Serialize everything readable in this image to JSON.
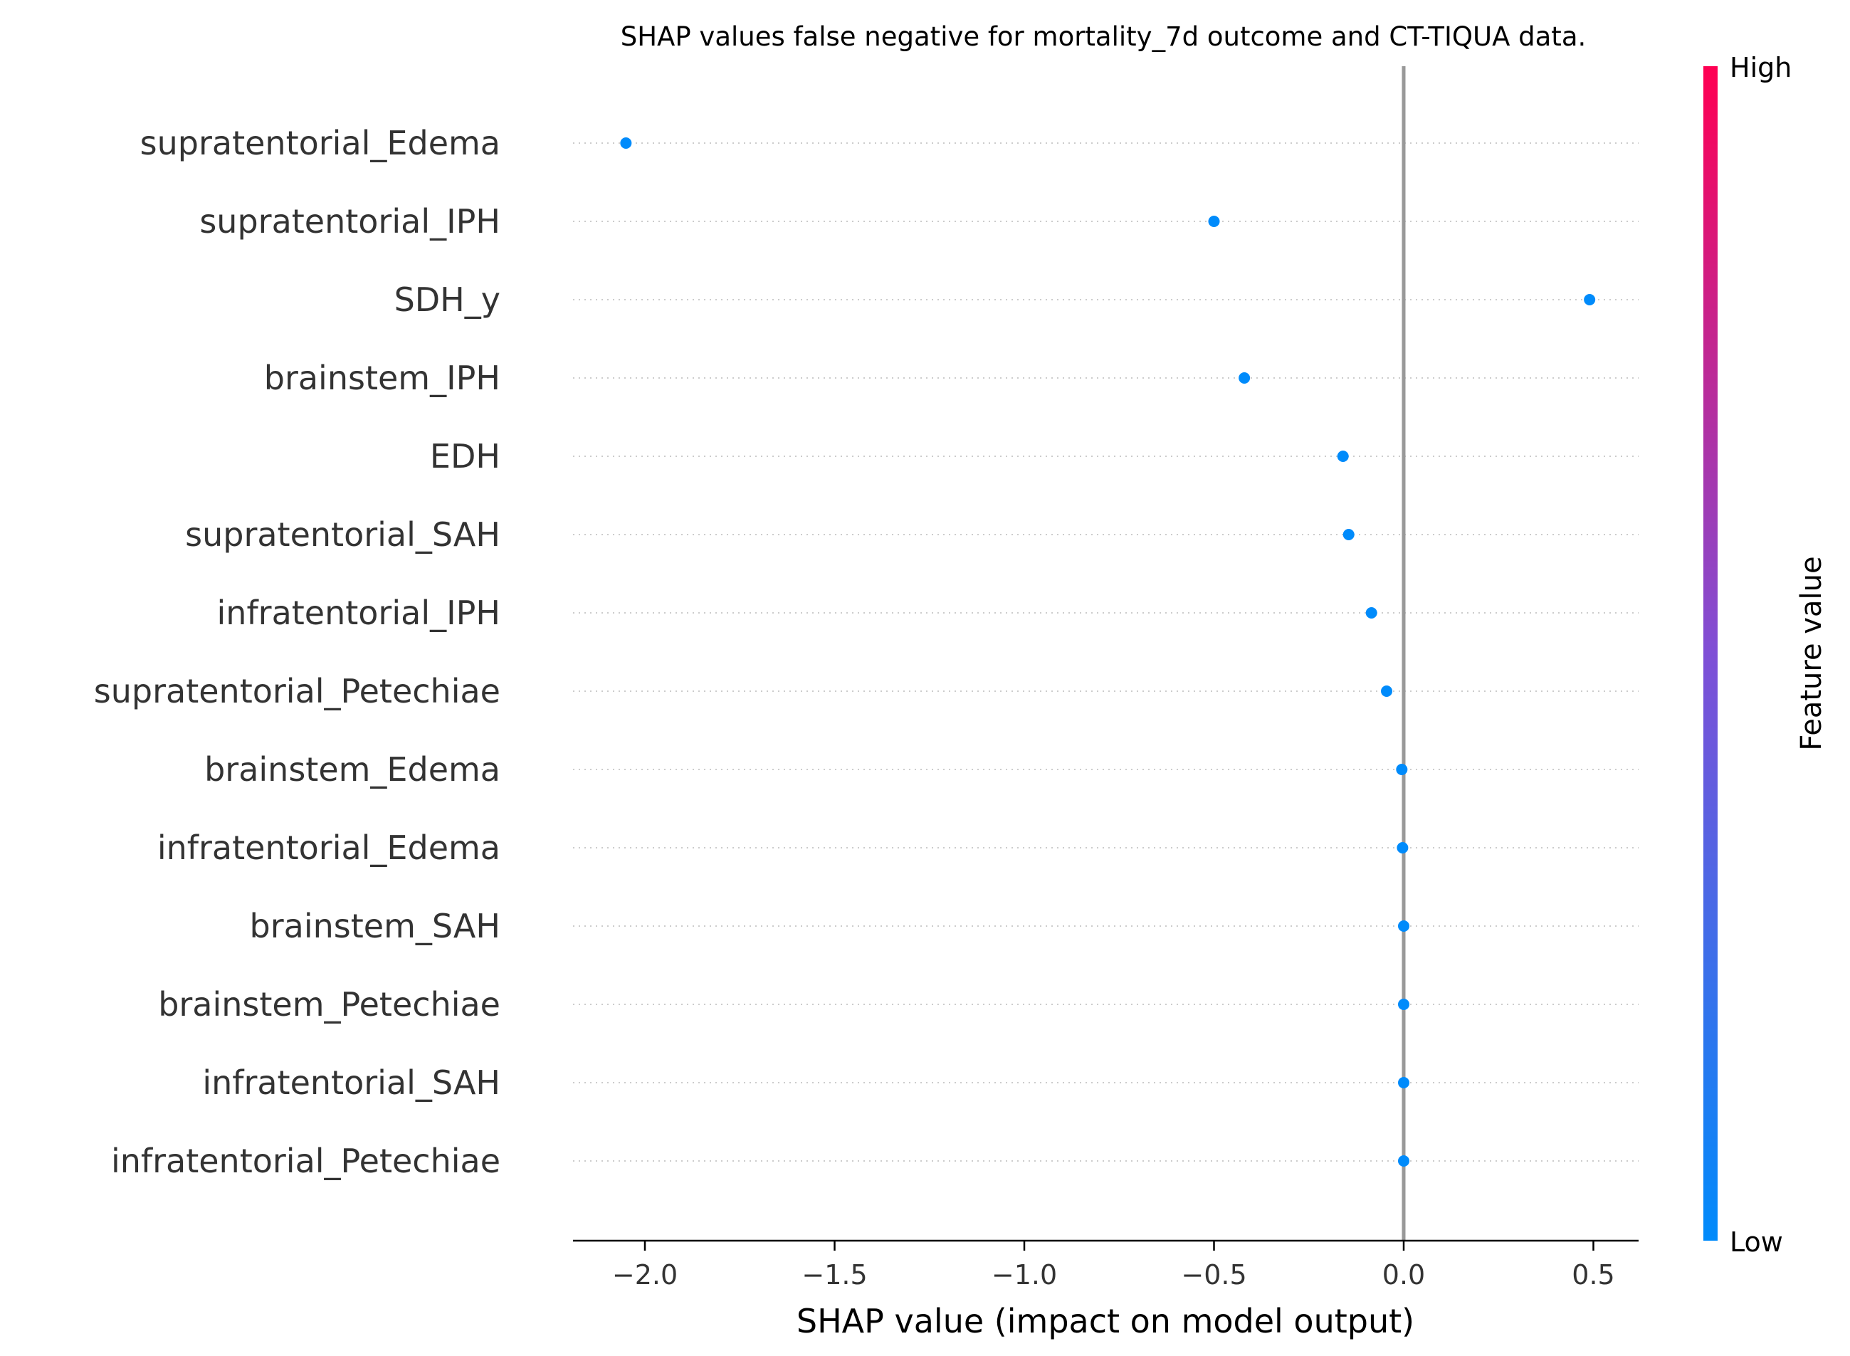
{
  "chart_data": {
    "type": "scatter",
    "title": "SHAP values false negative for mortality_7d outcome and CT-TIQUA data.",
    "xlabel": "SHAP value (impact on model output)",
    "xlim": [
      -2.18,
      0.62
    ],
    "xticks": [
      {
        "value": -2.0,
        "label": "−2.0"
      },
      {
        "value": -1.5,
        "label": "−1.5"
      },
      {
        "value": -1.0,
        "label": "−1.0"
      },
      {
        "value": -0.5,
        "label": "−0.5"
      },
      {
        "value": 0.0,
        "label": "0.0"
      },
      {
        "value": 0.5,
        "label": "0.5"
      }
    ],
    "features": [
      {
        "name": "supratentorial_Edema",
        "value": -2.05
      },
      {
        "name": "supratentorial_IPH",
        "value": -0.5
      },
      {
        "name": "SDH_y",
        "value": 0.49
      },
      {
        "name": "brainstem_IPH",
        "value": -0.42
      },
      {
        "name": "EDH",
        "value": -0.16
      },
      {
        "name": "supratentorial_SAH",
        "value": -0.145
      },
      {
        "name": "infratentorial_IPH",
        "value": -0.085
      },
      {
        "name": "supratentorial_Petechiae",
        "value": -0.045
      },
      {
        "name": "brainstem_Edema",
        "value": -0.005
      },
      {
        "name": "infratentorial_Edema",
        "value": -0.003
      },
      {
        "name": "brainstem_SAH",
        "value": 0.0
      },
      {
        "name": "brainstem_Petechiae",
        "value": 0.0
      },
      {
        "name": "infratentorial_SAH",
        "value": 0.0
      },
      {
        "name": "infratentorial_Petechiae",
        "value": 0.0
      }
    ],
    "colorbar": {
      "label": "Feature value",
      "high_label": "High",
      "low_label": "Low",
      "low_color": "#008bfb",
      "high_color": "#ff0052"
    },
    "point_color": "#008bfb",
    "zero_line_color": "#999999",
    "grid_color": "#cccccc"
  }
}
